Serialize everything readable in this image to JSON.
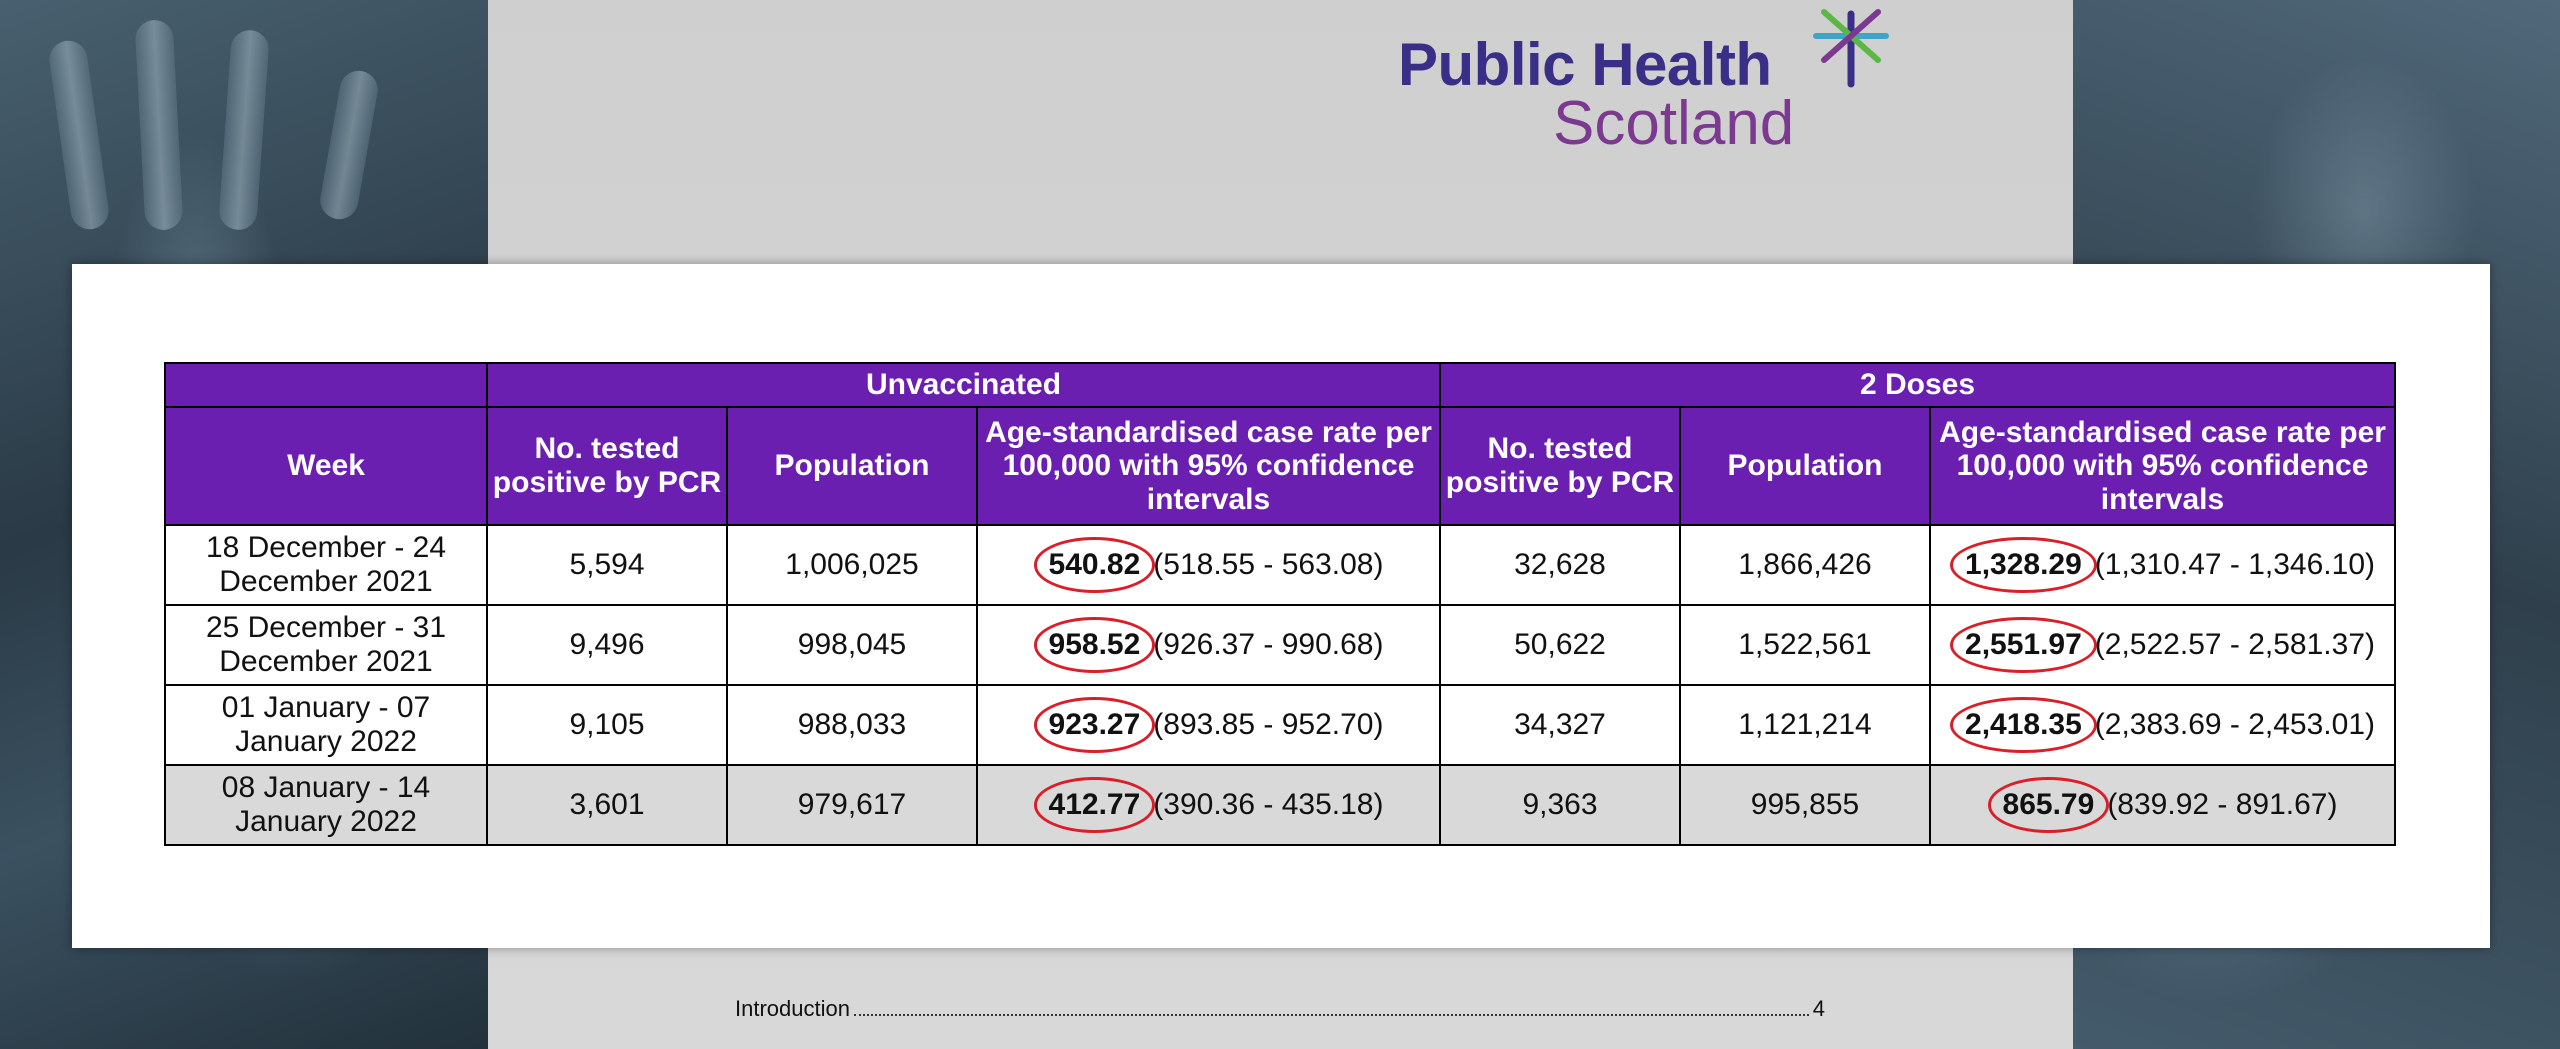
{
  "logo": {
    "line1": "Public Health",
    "line2": "Scotland",
    "colors": {
      "navy": "#3a2f86",
      "purple": "#7b3a8f",
      "green": "#5bb847",
      "teal": "#3fa4c6"
    }
  },
  "table": {
    "group_headers": [
      "Unvaccinated",
      "2 Doses"
    ],
    "columns": {
      "week": "Week",
      "positive": "No. tested positive by PCR",
      "population": "Population",
      "rate": "Age-standardised case rate per 100,000 with 95% confidence intervals"
    },
    "rows": [
      {
        "week": "18 December - 24 December 2021",
        "unvax": {
          "positive": "5,594",
          "population": "1,006,025",
          "rate": "540.82",
          "ci": "(518.55 - 563.08)"
        },
        "dose2": {
          "positive": "32,628",
          "population": "1,866,426",
          "rate": "1,328.29",
          "ci": "(1,310.47 - 1,346.10)"
        }
      },
      {
        "week": "25 December - 31 December 2021",
        "unvax": {
          "positive": "9,496",
          "population": "998,045",
          "rate": "958.52",
          "ci": "(926.37 - 990.68)"
        },
        "dose2": {
          "positive": "50,622",
          "population": "1,522,561",
          "rate": "2,551.97",
          "ci": "(2,522.57 - 2,581.37)"
        }
      },
      {
        "week": "01 January - 07 January 2022",
        "unvax": {
          "positive": "9,105",
          "population": "988,033",
          "rate": "923.27",
          "ci": "(893.85 - 952.70)"
        },
        "dose2": {
          "positive": "34,327",
          "population": "1,121,214",
          "rate": "2,418.35",
          "ci": "(2,383.69 - 2,453.01)"
        }
      },
      {
        "week": "08 January - 14 January 2022",
        "unvax": {
          "positive": "3,601",
          "population": "979,617",
          "rate": "412.77",
          "ci": "(390.36 - 435.18)"
        },
        "dose2": {
          "positive": "9,363",
          "population": "995,855",
          "rate": "865.79",
          "ci": "(839.92 - 891.67)"
        }
      }
    ],
    "colors": {
      "header_bg": "#6b1fb1",
      "highlight_circle": "#d8202a",
      "last_row_bg": "#d9d9d9"
    }
  },
  "toc": {
    "items": [
      {
        "title": "Introduction",
        "page": "4"
      }
    ]
  }
}
